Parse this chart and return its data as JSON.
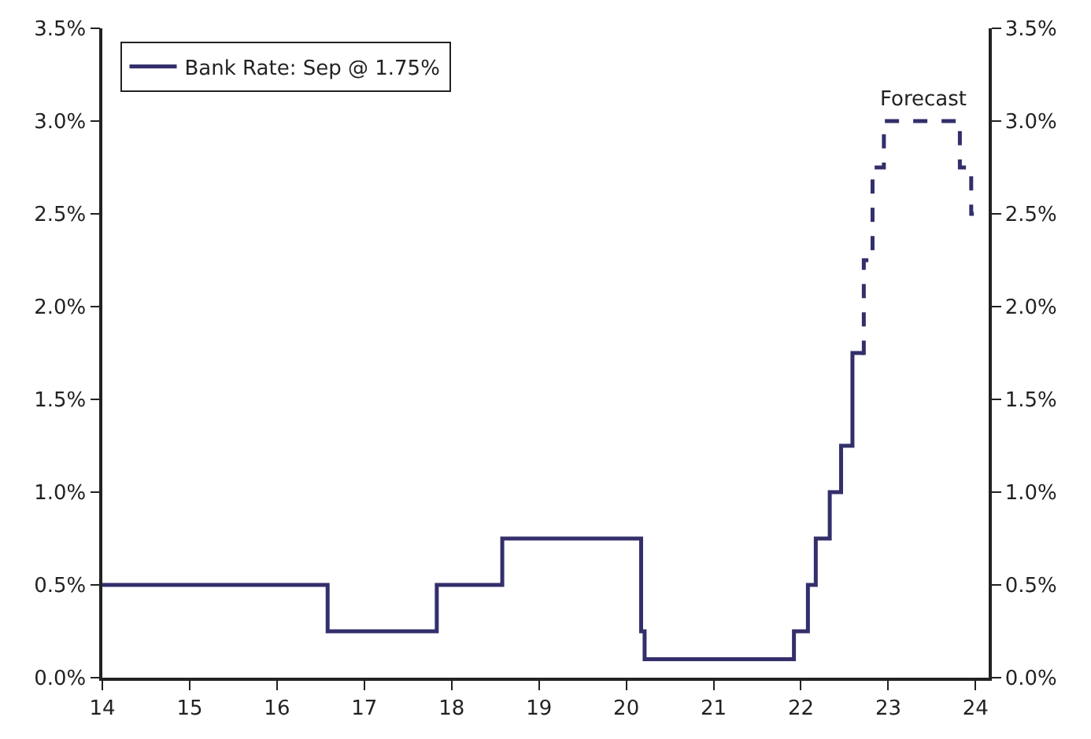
{
  "chart_data": {
    "type": "step",
    "legend": "top left",
    "marker": "none",
    "xlim": [
      14,
      24.15
    ],
    "xticks": [
      14,
      15,
      16,
      17,
      18,
      19,
      20,
      21,
      22,
      23,
      24
    ],
    "ylim": [
      0,
      3.5
    ],
    "yticks": [
      {
        "value": 0,
        "label": "0.0%"
      },
      {
        "value": 0.5,
        "label": "0.5%"
      },
      {
        "value": 1,
        "label": "1.0%"
      },
      {
        "value": 1.5,
        "label": "1.5%"
      },
      {
        "value": 2,
        "label": "2.0%"
      },
      {
        "value": 2.5,
        "label": "2.5%"
      },
      {
        "value": 3,
        "label": "3.0%"
      },
      {
        "value": 3.5,
        "label": "3.5%"
      }
    ],
    "y2lim": [
      0,
      3.5
    ],
    "y2ticks": [
      {
        "value": 0,
        "label": "0.0%"
      },
      {
        "value": 0.5,
        "label": "0.5%"
      },
      {
        "value": 1,
        "label": "1.0%"
      },
      {
        "value": 1.5,
        "label": "1.5%"
      },
      {
        "value": 2,
        "label": "2.0%"
      },
      {
        "value": 2.5,
        "label": "2.5%"
      },
      {
        "value": 3,
        "label": "3.0%"
      },
      {
        "value": 3.5,
        "label": "3.5%"
      }
    ],
    "annotations": [
      {
        "text": "Forecast",
        "x": 23.4,
        "y": 3.0
      }
    ],
    "series": [
      {
        "name": "Bank Rate: Sep @ 1.75%",
        "color": "#332f6b",
        "line_style": "solid",
        "x": [
          14,
          16.58,
          17.83,
          18.58,
          20.17,
          20.21,
          21.92,
          22.08,
          22.17,
          22.33,
          22.46,
          22.59,
          22.72
        ],
        "values": [
          0.5,
          0.25,
          0.5,
          0.75,
          0.25,
          0.1,
          0.25,
          0.5,
          0.75,
          1.0,
          1.25,
          1.75,
          1.75
        ]
      },
      {
        "color": "#332f6b",
        "line_style": "dashed",
        "x": [
          22.7,
          22.72,
          22.82,
          22.95,
          23.82,
          23.95,
          23.98
        ],
        "values": [
          1.75,
          2.25,
          2.75,
          3.0,
          2.75,
          2.5,
          2.5
        ]
      }
    ]
  }
}
